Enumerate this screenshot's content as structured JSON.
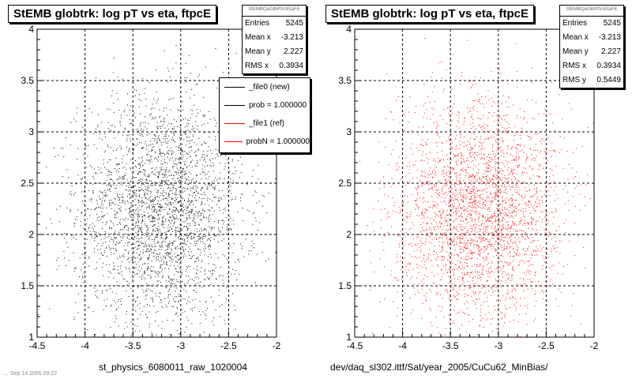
{
  "footer": "… Sep 14 2005 09:22",
  "legend": {
    "entries": [
      {
        "label": "_file0 (new)",
        "color": "#000000"
      },
      {
        "label": "prob = 1.000000",
        "color": "#000000"
      },
      {
        "label": "_file1 (ref)",
        "color": "#ff0000"
      },
      {
        "label": "probN = 1.000000",
        "color": "#ff0000"
      }
    ]
  },
  "chart_data": [
    {
      "type": "scatter",
      "title": "StEMB globtrk: log pT vs eta, ftpcE",
      "xlabel": "st_physics_6080011_raw_1020004",
      "ylabel": "",
      "xlim": [
        -4.5,
        -2
      ],
      "ylim": [
        1,
        4
      ],
      "xticks": [
        "-4.5",
        "-4",
        "-3.5",
        "-3",
        "-2.5",
        "-2"
      ],
      "yticks": [
        "1",
        "1.5",
        "2",
        "2.5",
        "3",
        "3.5",
        "4"
      ],
      "grid": true,
      "color": "#000000",
      "stats": {
        "name": "StEMBQaGlbPtVsEtaFE",
        "rows": [
          {
            "label": "Entries",
            "value": "5245"
          },
          {
            "label": "Mean x",
            "value": "-3.213"
          },
          {
            "label": "Mean y",
            "value": "2.227"
          },
          {
            "label": "RMS x",
            "value": "0.3934"
          }
        ]
      },
      "distribution": {
        "entries": 5245,
        "mean_x": -3.213,
        "mean_y": 2.227,
        "rms_x": 0.3934,
        "rms_y": 0.5449
      }
    },
    {
      "type": "scatter",
      "title": "StEMB globtrk: log pT vs eta, ftpcE",
      "xlabel": "dev/daq_sl302.ittf/Sat/year_2005/CuCu62_MinBias/",
      "ylabel": "",
      "xlim": [
        -4.5,
        -2
      ],
      "ylim": [
        1,
        4
      ],
      "xticks": [
        "-4.5",
        "-4",
        "-3.5",
        "-3",
        "-2.5",
        "-2"
      ],
      "yticks": [
        "1",
        "1.5",
        "2",
        "2.5",
        "3",
        "3.5",
        "4"
      ],
      "grid": true,
      "color": "#ff0000",
      "stats": {
        "name": "StEMBQaGlbPtVsEtaFE",
        "rows": [
          {
            "label": "Entries",
            "value": "5245"
          },
          {
            "label": "Mean x",
            "value": "-3.213"
          },
          {
            "label": "Mean y",
            "value": "2.227"
          },
          {
            "label": "RMS x",
            "value": "0.3934"
          },
          {
            "label": "RMS y",
            "value": "0.5449"
          }
        ]
      },
      "distribution": {
        "entries": 5245,
        "mean_x": -3.213,
        "mean_y": 2.227,
        "rms_x": 0.3934,
        "rms_y": 0.5449
      }
    }
  ]
}
